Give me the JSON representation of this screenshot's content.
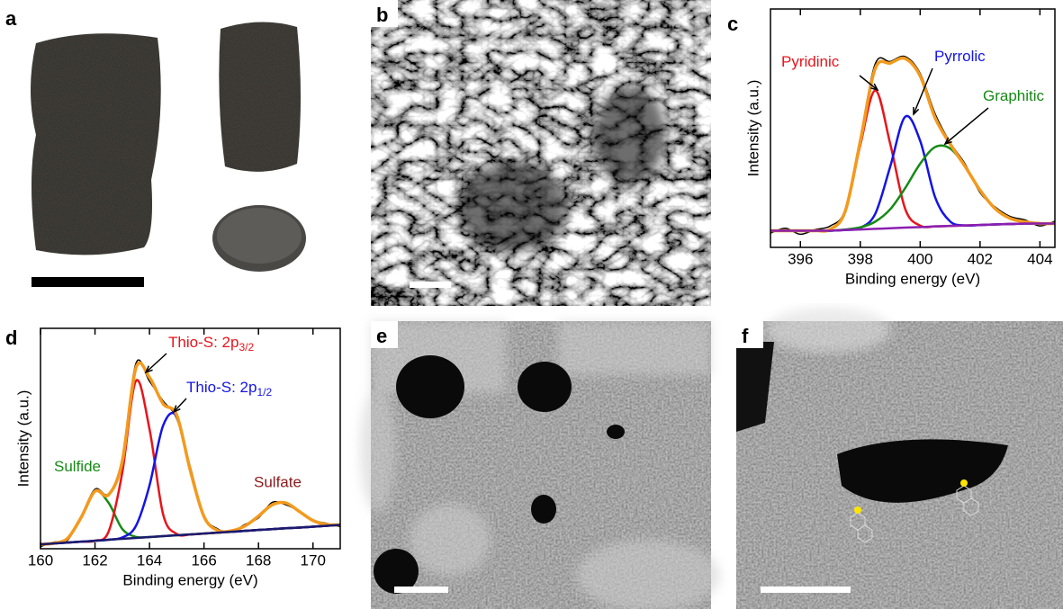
{
  "panel_labels": [
    "a",
    "b",
    "c",
    "d",
    "e",
    "f"
  ],
  "chart_data": [
    {
      "type": "line",
      "xlabel": "Binding energy (eV)",
      "ylabel": "Intensity (a.u.)",
      "x": [
        395,
        395.5,
        396,
        396.5,
        397,
        397.5,
        398,
        398.5,
        399,
        399.5,
        400,
        400.5,
        401,
        401.5,
        402,
        402.5,
        403,
        403.5,
        404,
        404.5
      ],
      "xlim": [
        395,
        404.5
      ],
      "xticks": [
        396,
        398,
        400,
        402,
        404
      ],
      "ylim": [
        0,
        100
      ],
      "series": [
        {
          "color": "#000000",
          "line_width": 1.5,
          "values": [
            6,
            8,
            5.5,
            7.5,
            9,
            16,
            46,
            77,
            78,
            80,
            73,
            56,
            44,
            35,
            23,
            17,
            13,
            11.5,
            9,
            11
          ]
        },
        {
          "name": "Pyridinic",
          "color": "#e8141b",
          "line_width": 2.5,
          "values": [
            7,
            7,
            7,
            7,
            7.6,
            15.1,
            42.9,
            65.8,
            43.4,
            16.1,
            9.1,
            8.8,
            9,
            9.2,
            9.4,
            9.6,
            9.8,
            10,
            10,
            10
          ]
        },
        {
          "name": "Pyrrolic",
          "color": "#1414e6",
          "line_width": 2.5,
          "values": [
            7,
            7,
            7,
            7,
            7,
            7.3,
            8.2,
            14.1,
            33.9,
            54.8,
            44.7,
            21,
            10.9,
            9.2,
            9.4,
            9.6,
            9.8,
            10,
            10,
            10
          ]
        },
        {
          "name": "Graphitic",
          "color": "#168a16",
          "line_width": 2.5,
          "values": [
            7,
            7,
            7,
            7,
            7,
            7.5,
            8.4,
            10.8,
            16,
            24.9,
            35.1,
            42.1,
            41.5,
            33.9,
            24,
            16.3,
            12.2,
            10.7,
            10,
            10
          ]
        },
        {
          "color": "#f39a1e",
          "line_width": 3.5,
          "values": [
            7,
            7,
            7,
            7,
            7.6,
            15.3,
            44.5,
            75.1,
            77.3,
            79.2,
            71.9,
            54.3,
            43.4,
            34,
            24,
            16.3,
            12.2,
            10.7,
            10,
            10
          ]
        },
        {
          "color": "#8a1fb0",
          "line_width": 2.5,
          "values": [
            7,
            7,
            7,
            7,
            7,
            7.3,
            7.5,
            7.8,
            8,
            8.3,
            8.5,
            8.8,
            9,
            9.2,
            9.4,
            9.6,
            9.8,
            10,
            10,
            10
          ]
        }
      ]
    },
    {
      "type": "line",
      "xlabel": "Binding energy (eV)",
      "ylabel": "Intensity (a.u.)",
      "x": [
        160,
        160.5,
        161,
        161.5,
        162,
        162.5,
        163,
        163.5,
        164,
        164.5,
        165,
        165.5,
        166,
        166.5,
        167,
        167.5,
        168,
        168.5,
        169,
        169.5,
        170,
        170.5,
        171
      ],
      "xlim": [
        160,
        171
      ],
      "xticks": [
        160,
        162,
        164,
        166,
        168,
        170
      ],
      "ylim": [
        0,
        100
      ],
      "annotations": [
        "Sulfate"
      ],
      "series": [
        {
          "color": "#000000",
          "line_width": 1.5,
          "values": [
            1,
            3,
            4,
            15,
            27,
            25,
            41,
            84,
            76,
            67,
            59,
            37,
            15,
            9,
            7.5,
            11,
            14,
            21,
            20,
            17,
            13,
            11.5,
            10
          ]
        },
        {
          "name": "Sulfide",
          "color": "#168a16",
          "line_width": 2.5,
          "values": [
            2,
            2.5,
            4.8,
            14.4,
            26.1,
            20.8,
            9,
            5.4,
            5.3,
            5.7,
            6.1,
            6.5,
            6.9,
            7.3,
            7.7,
            8.1,
            8.5,
            8.9,
            9.3,
            9.6,
            10,
            10.4,
            10.8
          ]
        },
        {
          "name": "Thio-S: 2p",
          "subscript": "3/2",
          "color": "#e8141b",
          "line_width": 2.5,
          "values": [
            2,
            2.4,
            2.8,
            3.2,
            3.6,
            7.8,
            34.5,
            76.1,
            54.3,
            15.6,
            6.7,
            6.5,
            6.9,
            7.3,
            7.7,
            8.1,
            8.5,
            8.9,
            9.3,
            9.6,
            10,
            10.4,
            10.8
          ]
        },
        {
          "name": "Thio-S: 2p",
          "subscript": "1/2",
          "color": "#1414e6",
          "line_width": 2.5,
          "values": [
            2,
            2.4,
            2.8,
            3.2,
            3.6,
            4.1,
            5.1,
            10.3,
            28.7,
            55.9,
            60,
            35.4,
            14.6,
            8.3,
            7.7,
            8.1,
            8.5,
            8.9,
            9.3,
            9.6,
            10,
            10.4,
            10.8
          ]
        },
        {
          "color": "#f39a1e",
          "line_width": 3.5,
          "values": [
            2,
            2.5,
            4.8,
            14.4,
            26.1,
            24.5,
            39.6,
            82,
            77.7,
            65.8,
            60.6,
            35.4,
            14.6,
            8.3,
            8.1,
            10.3,
            14.8,
            19.9,
            20.8,
            16.9,
            12.8,
            11,
            10.8
          ]
        },
        {
          "color": "#1a1a6e",
          "line_width": 2.5,
          "values": [
            2,
            2.4,
            2.8,
            3.2,
            3.6,
            4.1,
            4.5,
            4.9,
            5.3,
            5.7,
            6.1,
            6.5,
            6.9,
            7.3,
            7.7,
            8.1,
            8.5,
            8.9,
            9.3,
            9.6,
            10,
            10.4,
            10.8
          ]
        }
      ]
    }
  ]
}
